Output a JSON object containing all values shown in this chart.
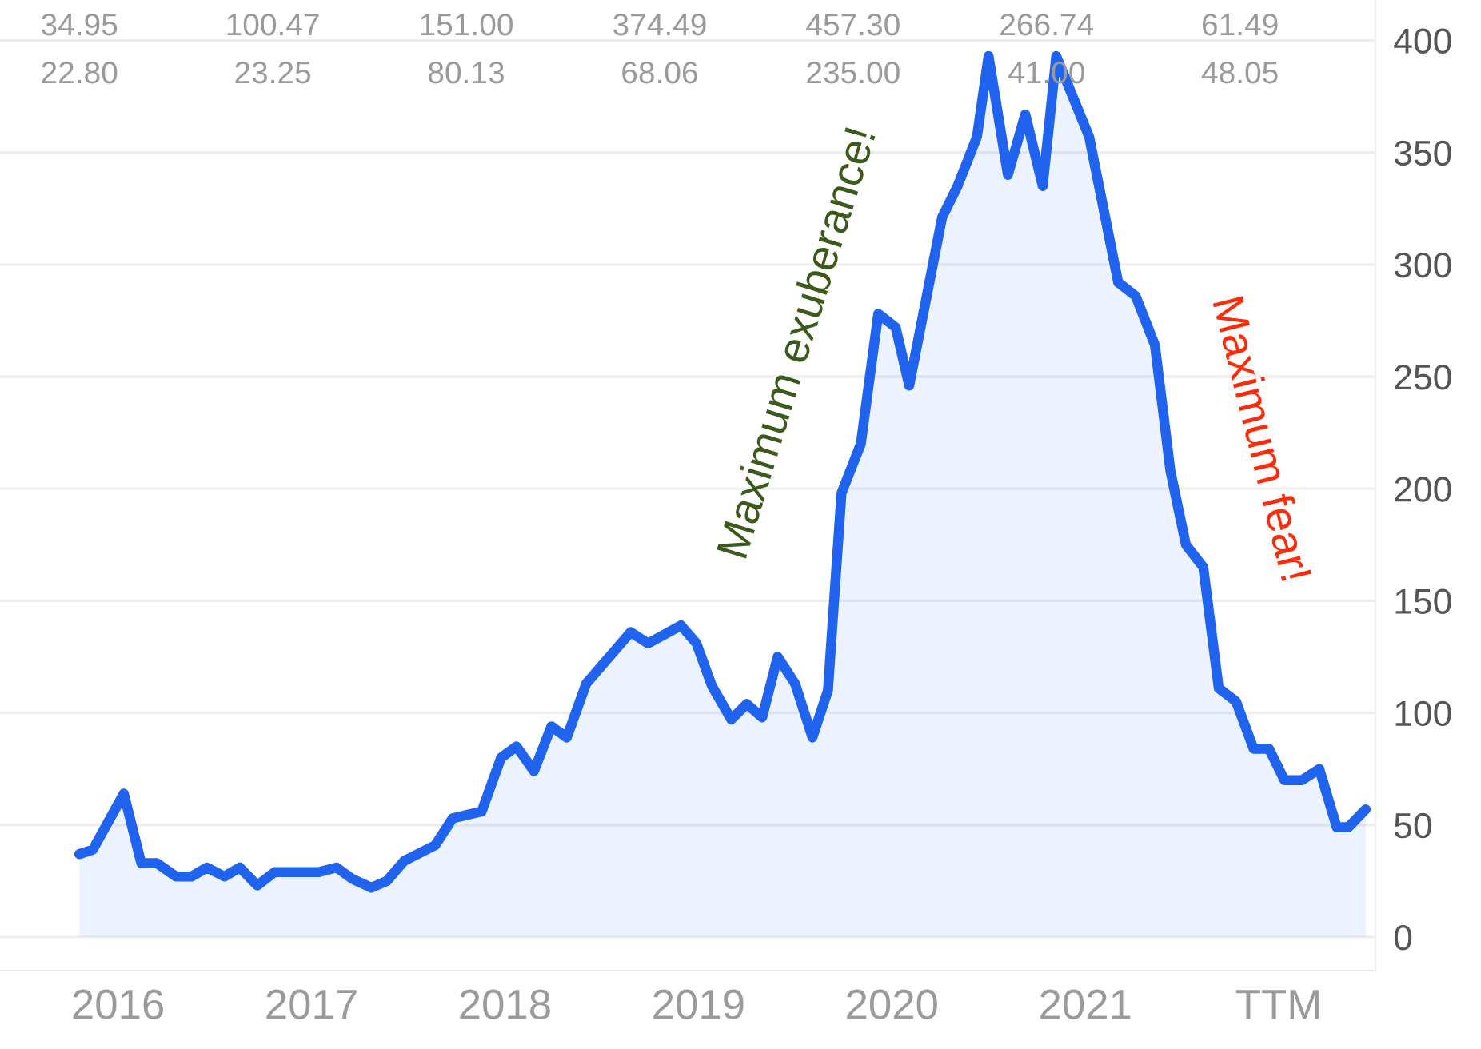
{
  "chart_data": {
    "type": "area",
    "x": [
      2015.8,
      2015.87,
      2016.03,
      2016.12,
      2016.2,
      2016.3,
      2016.38,
      2016.46,
      2016.55,
      2016.63,
      2016.72,
      2016.81,
      2017.04,
      2017.13,
      2017.21,
      2017.31,
      2017.39,
      2017.48,
      2017.64,
      2017.73,
      2017.88,
      2017.98,
      2018.06,
      2018.15,
      2018.24,
      2018.32,
      2018.42,
      2018.5,
      2018.65,
      2018.74,
      2018.91,
      2018.99,
      2019.07,
      2019.17,
      2019.25,
      2019.33,
      2019.41,
      2019.5,
      2019.59,
      2019.67,
      2019.74,
      2019.84,
      2019.93,
      2020.02,
      2020.09,
      2020.26,
      2020.34,
      2020.44,
      2020.5,
      2020.6,
      2020.69,
      2020.78,
      2020.85,
      2021.02,
      2021.17,
      2021.26,
      2021.36,
      2021.44,
      2021.52,
      2021.61,
      2021.69,
      2021.78,
      2021.87,
      2021.95,
      2022.03,
      2022.12,
      2022.21,
      2022.3,
      2022.36,
      2022.45
    ],
    "series": [
      {
        "color": "#1f63ee",
        "values": [
          37,
          39,
          64,
          33,
          33,
          27,
          27,
          31,
          27,
          31,
          23,
          29,
          29,
          31,
          26,
          22,
          25,
          34,
          41,
          53,
          56,
          80,
          85,
          74,
          94,
          89,
          113,
          121,
          136,
          131,
          139,
          131,
          112,
          97,
          104,
          98,
          125,
          113,
          89,
          110,
          198,
          220,
          278,
          272,
          246,
          321,
          335,
          357,
          393,
          340,
          367,
          335,
          393,
          357,
          292,
          286,
          264,
          208,
          175,
          165,
          111,
          105,
          84,
          84,
          70,
          70,
          75,
          49,
          49,
          57
        ]
      }
    ],
    "xlim": [
      2015.39,
      2022.5
    ],
    "xticks": [
      2016,
      2017,
      2018,
      2019,
      2020,
      2021,
      {
        "value": 2022,
        "label": "TTM"
      }
    ],
    "ylim": [
      -15,
      418
    ],
    "yticks": [
      0,
      50,
      100,
      150,
      200,
      250,
      300,
      350,
      400
    ],
    "grid": "y",
    "annotations": [
      "34.95",
      "22.80",
      "100.47",
      "23.25",
      "151.00",
      "80.13",
      "374.49",
      "68.06",
      "457.30",
      "235.00",
      "266.74",
      "41.00",
      "61.49",
      "48.05",
      "Maximum exuberance!",
      "Maximum fear!"
    ]
  }
}
